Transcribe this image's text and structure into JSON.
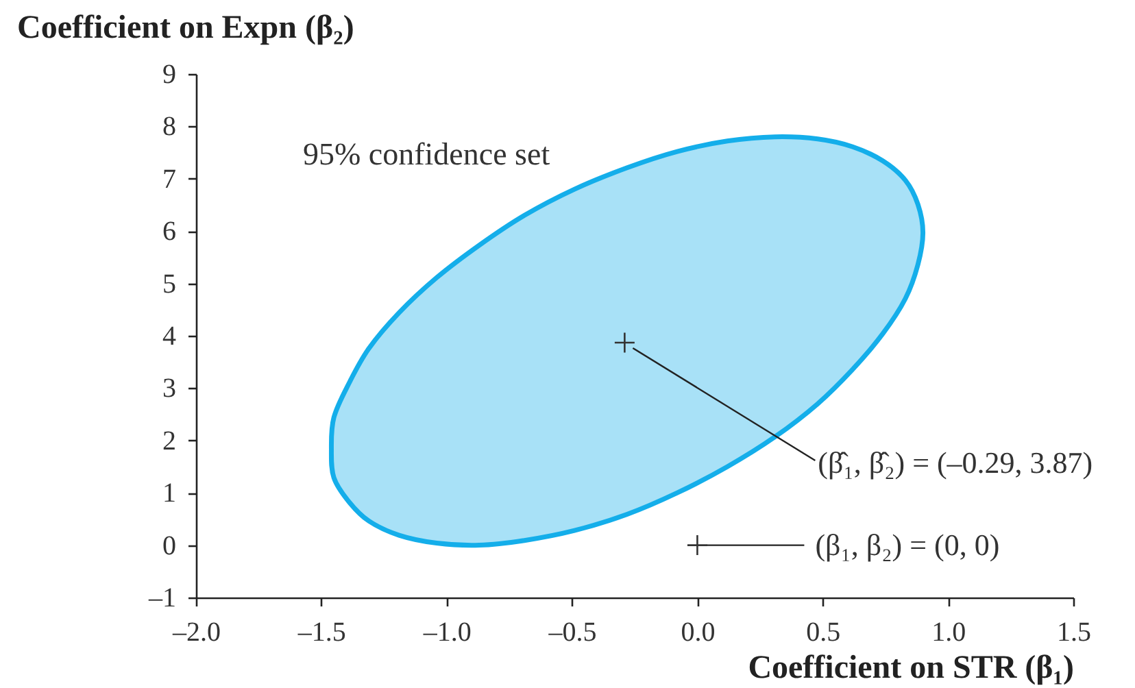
{
  "chart_data": {
    "type": "area",
    "xlabel": "Coefficient on STR (β₁)",
    "ylabel": "Coefficient on Expn (β₂)",
    "xlim": [
      -2,
      1.5
    ],
    "ylim": [
      -1,
      9
    ],
    "xticks": [
      {
        "value": -2,
        "label": "–2.0"
      },
      {
        "value": -1.5,
        "label": "–1.5"
      },
      {
        "value": -1,
        "label": "–1.0"
      },
      {
        "value": -0.5,
        "label": "–0.5"
      },
      {
        "value": 0,
        "label": "0.0"
      },
      {
        "value": 0.5,
        "label": "0.5"
      },
      {
        "value": 1,
        "label": "1.0"
      },
      {
        "value": 1.5,
        "label": "1.5"
      }
    ],
    "yticks": [
      {
        "value": -1,
        "label": "–1"
      },
      0,
      1,
      2,
      3,
      4,
      5,
      6,
      7,
      8,
      9
    ],
    "series": [
      {
        "color": "#14aeea",
        "x": [
          0.9,
          0.88,
          0.83,
          0.74,
          0.62,
          0.48,
          0.31,
          0.12,
          -0.08,
          -0.28,
          -0.49,
          -0.69,
          -0.87,
          -1.04,
          -1.19,
          -1.31,
          -1.39,
          -1.45,
          -1.46,
          -1.45,
          -1.39,
          -1.31,
          -1.19,
          -1.04,
          -0.87,
          -0.69,
          -0.49,
          -0.28,
          -0.08,
          0.12,
          0.31,
          0.48,
          0.62,
          0.74,
          0.83,
          0.88
        ],
        "values": [
          5.97,
          6.51,
          6.97,
          7.34,
          7.61,
          7.76,
          7.8,
          7.72,
          7.52,
          7.21,
          6.8,
          6.3,
          5.73,
          5.11,
          4.44,
          3.76,
          3.09,
          2.44,
          1.83,
          1.29,
          0.83,
          0.46,
          0.19,
          0.04,
          0.0,
          0.09,
          0.28,
          0.59,
          1.0,
          1.5,
          2.07,
          2.7,
          3.36,
          4.04,
          4.71,
          5.36
        ]
      },
      {
        "type": "scatter",
        "color": "#333333",
        "marker": "cross",
        "x": [
          -0.29,
          0
        ],
        "values": [
          3.87,
          0
        ]
      }
    ],
    "annotations": [
      "95% confidence set",
      {
        "text": "(β̂₁, β̂₂) = (–0.29, 3.87)",
        "x": -0.29,
        "y": 3.87
      },
      {
        "text": "(β₁, β₂) = (0, 0)",
        "x": 0,
        "y": 0
      }
    ]
  }
}
